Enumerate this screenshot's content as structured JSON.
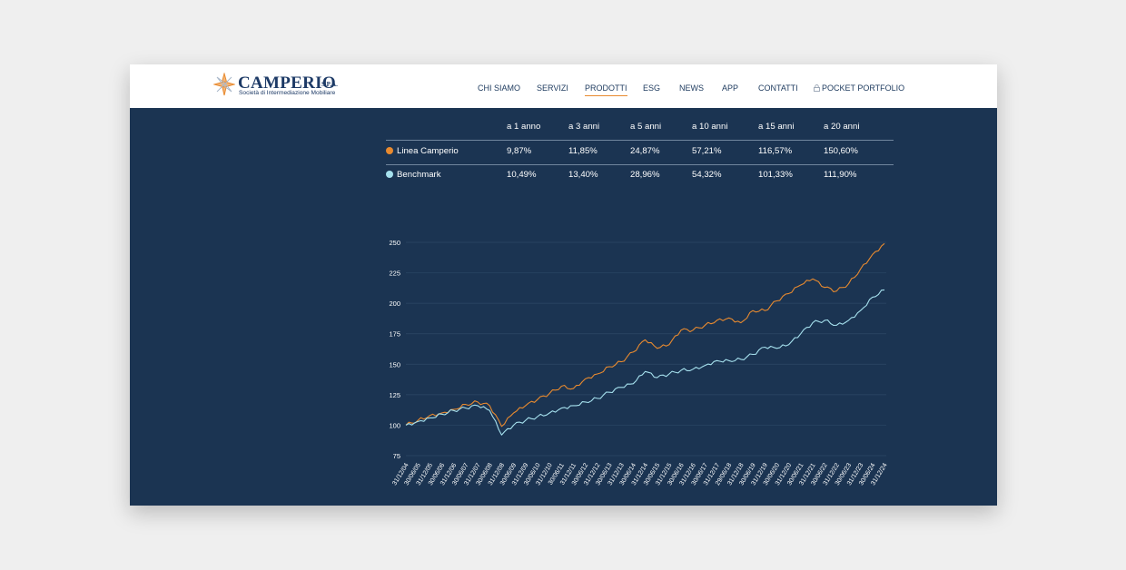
{
  "brand": {
    "name": "CAMPERIO",
    "suffix": "S.P.A.",
    "tagline": "Società di Intermediazione Mobiliare"
  },
  "nav": {
    "items": [
      {
        "label": "CHI SIAMO"
      },
      {
        "label": "SERVIZI"
      },
      {
        "label": "PRODOTTI",
        "active": true
      },
      {
        "label": "ESG"
      },
      {
        "label": "NEWS"
      },
      {
        "label": "APP"
      },
      {
        "label": "CONTATTI"
      },
      {
        "label": "POCKET PORTFOLIO",
        "icon": "lock-icon"
      }
    ]
  },
  "performance_table": {
    "columns": [
      "a 1 anno",
      "a 3 anni",
      "a 5 anni",
      "a 10 anni",
      "a 15 anni",
      "a 20 anni"
    ],
    "rows": [
      {
        "label": "Linea Camperio",
        "color": "#e88a2f",
        "values": [
          "9,87%",
          "11,85%",
          "24,87%",
          "57,21%",
          "116,57%",
          "150,60%"
        ]
      },
      {
        "label": "Benchmark",
        "color": "#a6e1ee",
        "values": [
          "10,49%",
          "13,40%",
          "28,96%",
          "54,32%",
          "101,33%",
          "111,90%"
        ]
      }
    ]
  },
  "chart_data": {
    "type": "line",
    "ylim": [
      75,
      250
    ],
    "y_ticks": [
      75,
      100,
      125,
      150,
      175,
      200,
      225,
      250
    ],
    "grid": true,
    "x": [
      "31/12/04",
      "30/06/05",
      "31/12/05",
      "30/06/06",
      "31/12/06",
      "30/06/07",
      "31/12/07",
      "30/06/08",
      "31/12/08",
      "30/06/09",
      "31/12/09",
      "30/06/10",
      "31/12/10",
      "30/06/11",
      "31/12/11",
      "30/06/12",
      "31/12/12",
      "30/06/13",
      "31/12/13",
      "30/06/14",
      "31/12/14",
      "30/06/15",
      "31/12/15",
      "30/06/16",
      "31/12/16",
      "30/06/17",
      "31/12/17",
      "29/06/18",
      "31/12/18",
      "30/06/19",
      "31/12/19",
      "30/06/20",
      "31/12/20",
      "30/06/21",
      "31/12/21",
      "30/06/22",
      "31/12/22",
      "30/06/23",
      "31/12/23",
      "30/06/24",
      "31/12/24"
    ],
    "series": [
      {
        "name": "Linea Camperio",
        "color": "#e88a2f",
        "values": [
          100,
          104,
          108,
          110,
          113,
          117,
          119,
          116,
          99,
          110,
          116,
          121,
          126,
          132,
          130,
          138,
          142,
          148,
          152,
          160,
          170,
          163,
          166,
          178,
          178,
          182,
          186,
          188,
          184,
          194,
          194,
          202,
          208,
          215,
          220,
          213,
          210,
          216,
          228,
          240,
          249
        ]
      },
      {
        "name": "Benchmark",
        "color": "#a6e1ee",
        "values": [
          100,
          103,
          106,
          109,
          112,
          114,
          116,
          112,
          92,
          100,
          104,
          107,
          110,
          114,
          116,
          119,
          122,
          127,
          131,
          134,
          144,
          139,
          142,
          145,
          146,
          149,
          153,
          153,
          154,
          158,
          164,
          163,
          166,
          175,
          184,
          186,
          182,
          186,
          194,
          205,
          211
        ]
      }
    ]
  }
}
